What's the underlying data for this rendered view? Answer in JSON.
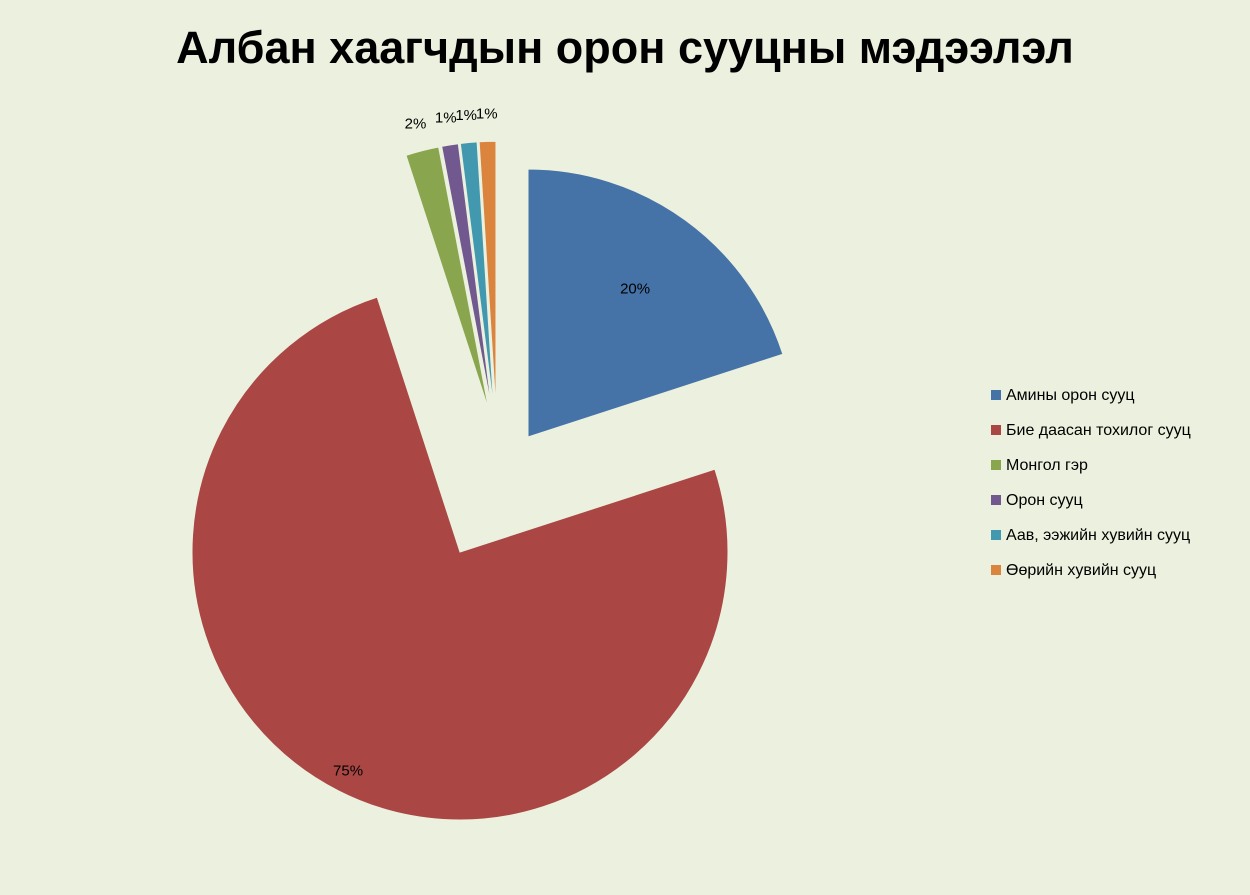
{
  "chart_data": {
    "type": "pie",
    "title": "Албан хаагчдын орон сууцны мэдээлэл",
    "legend_position": "right",
    "exploded": true,
    "slices": [
      {
        "label": "Амины орон сууц",
        "value": 20,
        "value_label": "20%",
        "color": "#4572a7"
      },
      {
        "label": "Бие даасан тохилог сууц",
        "value": 75,
        "value_label": "75%",
        "color": "#aa4643"
      },
      {
        "label": "Монгол гэр",
        "value": 2,
        "value_label": "2%",
        "color": "#89a54e"
      },
      {
        "label": "Орон сууц",
        "value": 1,
        "value_label": "1%",
        "color": "#71588f"
      },
      {
        "label": "Аав, ээжийн хувийн сууц",
        "value": 1,
        "value_label": "1%",
        "color": "#4198af"
      },
      {
        "label": "Өөрийн хувийн сууц",
        "value": 1,
        "value_label": "1%",
        "color": "#db843d"
      }
    ]
  }
}
